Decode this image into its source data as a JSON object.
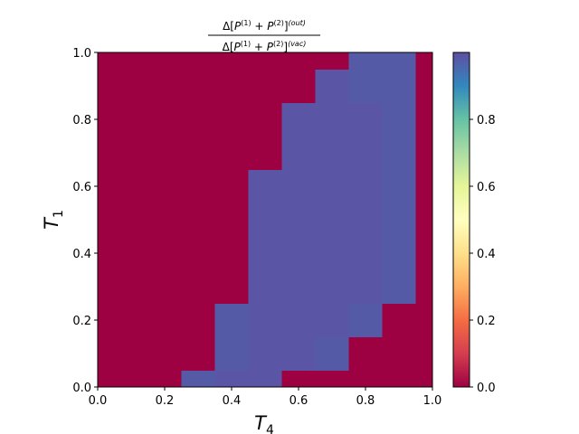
{
  "chart_data": {
    "type": "heatmap",
    "title": {
      "numerator": "Δ[P(1) + P(2)](out)",
      "denominator": "Δ[P(1) + P(2)](vac)"
    },
    "xlabel": "T4",
    "ylabel": "T1",
    "xlim": [
      0.0,
      1.0
    ],
    "ylim": [
      0.0,
      1.0
    ],
    "x_ticks": [
      "0.0",
      "0.2",
      "0.4",
      "0.6",
      "0.8",
      "1.0"
    ],
    "y_ticks": [
      "0.0",
      "0.2",
      "0.4",
      "0.6",
      "0.8",
      "1.0"
    ],
    "colorbar": {
      "range": [
        0.0,
        1.0
      ],
      "ticks": [
        "0.0",
        "0.2",
        "0.4",
        "0.6",
        "0.8"
      ],
      "colormap": "Spectral"
    },
    "grid_size": [
      11,
      11
    ],
    "x_centers": [
      0.0,
      0.1,
      0.2,
      0.3,
      0.4,
      0.5,
      0.6,
      0.7,
      0.8,
      0.9,
      1.0
    ],
    "y_centers": [
      0.0,
      0.1,
      0.2,
      0.3,
      0.4,
      0.5,
      0.6,
      0.7,
      0.8,
      0.9,
      1.0
    ],
    "values": [
      [
        0,
        0,
        0,
        0.98,
        0.99,
        0.99,
        0,
        0,
        0,
        0,
        0
      ],
      [
        0,
        0,
        0,
        0,
        0.98,
        0.99,
        0.99,
        0.98,
        0,
        0,
        0
      ],
      [
        0,
        0,
        0,
        0,
        0.98,
        0.99,
        0.99,
        0.99,
        0.98,
        0,
        0
      ],
      [
        0,
        0,
        0,
        0,
        0,
        0.99,
        0.99,
        0.99,
        0.99,
        0.98,
        0
      ],
      [
        0,
        0,
        0,
        0,
        0,
        0.99,
        0.99,
        0.99,
        0.99,
        0.98,
        0
      ],
      [
        0,
        0,
        0,
        0,
        0,
        0.99,
        0.99,
        0.99,
        0.99,
        0.98,
        0
      ],
      [
        0,
        0,
        0,
        0,
        0,
        0.99,
        0.99,
        0.99,
        0.99,
        0.98,
        0
      ],
      [
        0,
        0,
        0,
        0,
        0,
        0,
        0.99,
        0.99,
        0.99,
        0.98,
        0
      ],
      [
        0,
        0,
        0,
        0,
        0,
        0,
        0.99,
        0.99,
        0.99,
        0.98,
        0
      ],
      [
        0,
        0,
        0,
        0,
        0,
        0,
        0,
        0.99,
        0.98,
        0.98,
        0
      ],
      [
        0,
        0,
        0,
        0,
        0,
        0,
        0,
        0,
        0.98,
        0.98,
        0
      ]
    ]
  }
}
